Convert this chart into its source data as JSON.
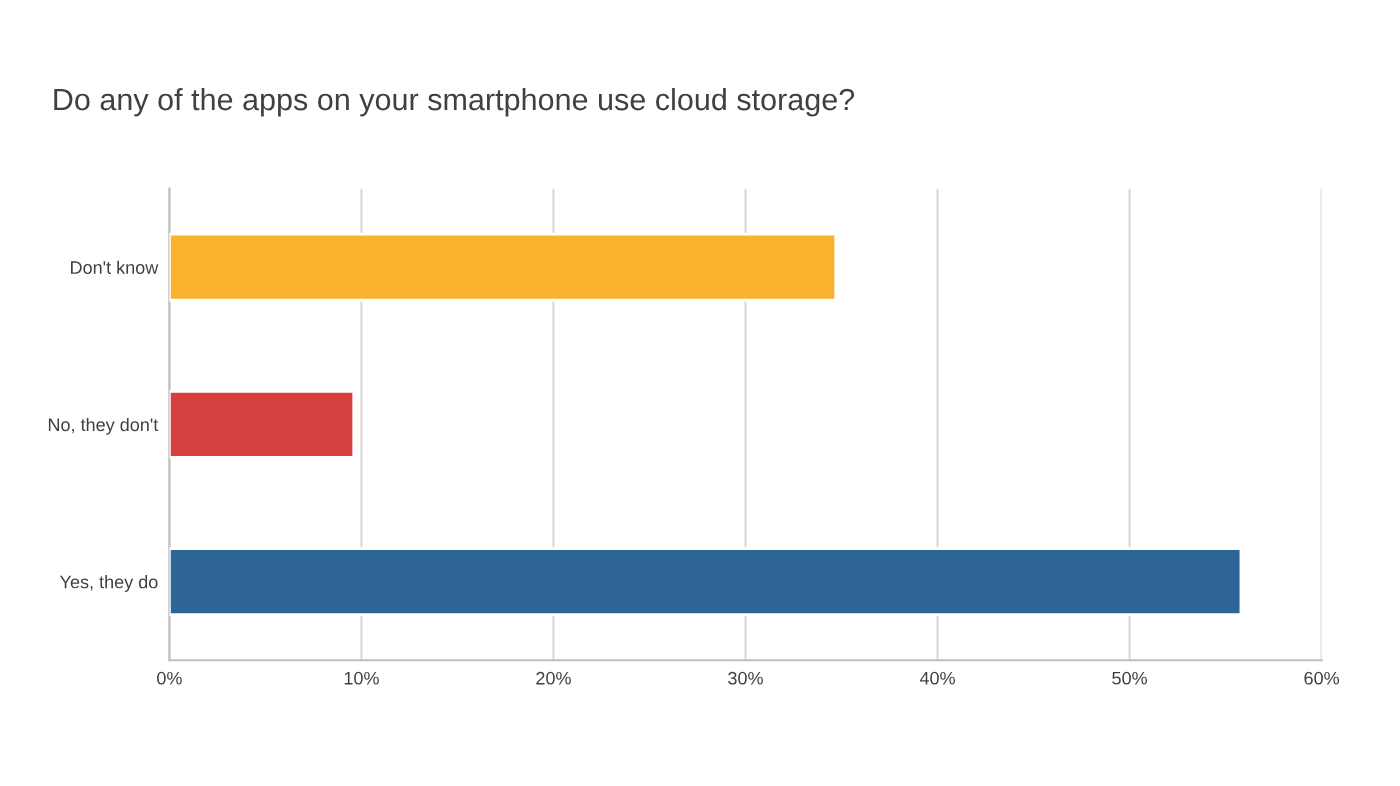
{
  "chart_data": {
    "type": "bar",
    "orientation": "horizontal",
    "title": "Do any of the apps on your smartphone use cloud storage?",
    "categories": [
      "Don't know",
      "No, they don't",
      "Yes, they do"
    ],
    "values": [
      34.7,
      9.6,
      55.8
    ],
    "colors": [
      "#fbb32f",
      "#d63f3f",
      "#2e6597"
    ],
    "xlim": [
      0,
      60
    ],
    "xticks": [
      {
        "value": 0,
        "label": "0%"
      },
      {
        "value": 10,
        "label": "10%"
      },
      {
        "value": 20,
        "label": "20%"
      },
      {
        "value": 30,
        "label": "30%"
      },
      {
        "value": 40,
        "label": "40%"
      },
      {
        "value": 50,
        "label": "50%"
      },
      {
        "value": 60,
        "label": "60%"
      }
    ],
    "grid": "x"
  }
}
